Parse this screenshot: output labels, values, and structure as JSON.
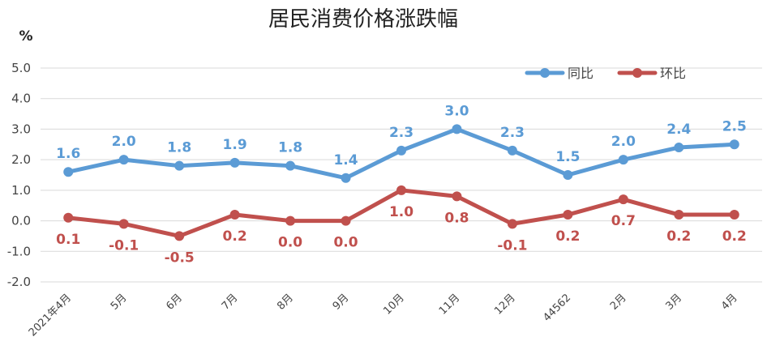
{
  "chart_data": {
    "type": "line",
    "title": "居民消费价格涨跌幅",
    "ylabel": "%",
    "ylim": [
      -2.0,
      5.0
    ],
    "yticks": [
      "5.0",
      "4.0",
      "3.0",
      "2.0",
      "1.0",
      "0.0",
      "-1.0",
      "-2.0"
    ],
    "grid": true,
    "legend_position": "top-right",
    "categories": [
      "2021年4月",
      "5月",
      "6月",
      "7月",
      "8月",
      "9月",
      "10月",
      "11月",
      "12月",
      "44562",
      "2月",
      "3月",
      "4月"
    ],
    "series": [
      {
        "name": "同比",
        "color": "#5B9BD5",
        "values": [
          1.6,
          2.0,
          1.8,
          1.9,
          1.8,
          1.4,
          2.3,
          3.0,
          2.3,
          1.5,
          2.0,
          2.4,
          2.5
        ],
        "labels": [
          "1.6",
          "2.0",
          "1.8",
          "1.9",
          "1.8",
          "1.4",
          "2.3",
          "3.0",
          "2.3",
          "1.5",
          "2.0",
          "2.4",
          "2.5"
        ]
      },
      {
        "name": "环比",
        "color": "#C0504D",
        "values": [
          0.1,
          -0.1,
          -0.5,
          0.2,
          0.0,
          0.0,
          1.0,
          0.8,
          -0.1,
          0.2,
          0.7,
          0.2,
          0.2
        ],
        "labels": [
          "0.1",
          "-0.1",
          "-0.5",
          "0.2",
          "0.0",
          "0.0",
          "1.0",
          "0.8",
          "-0.1",
          "0.2",
          "0.7",
          "0.2",
          "0.2"
        ]
      }
    ]
  }
}
